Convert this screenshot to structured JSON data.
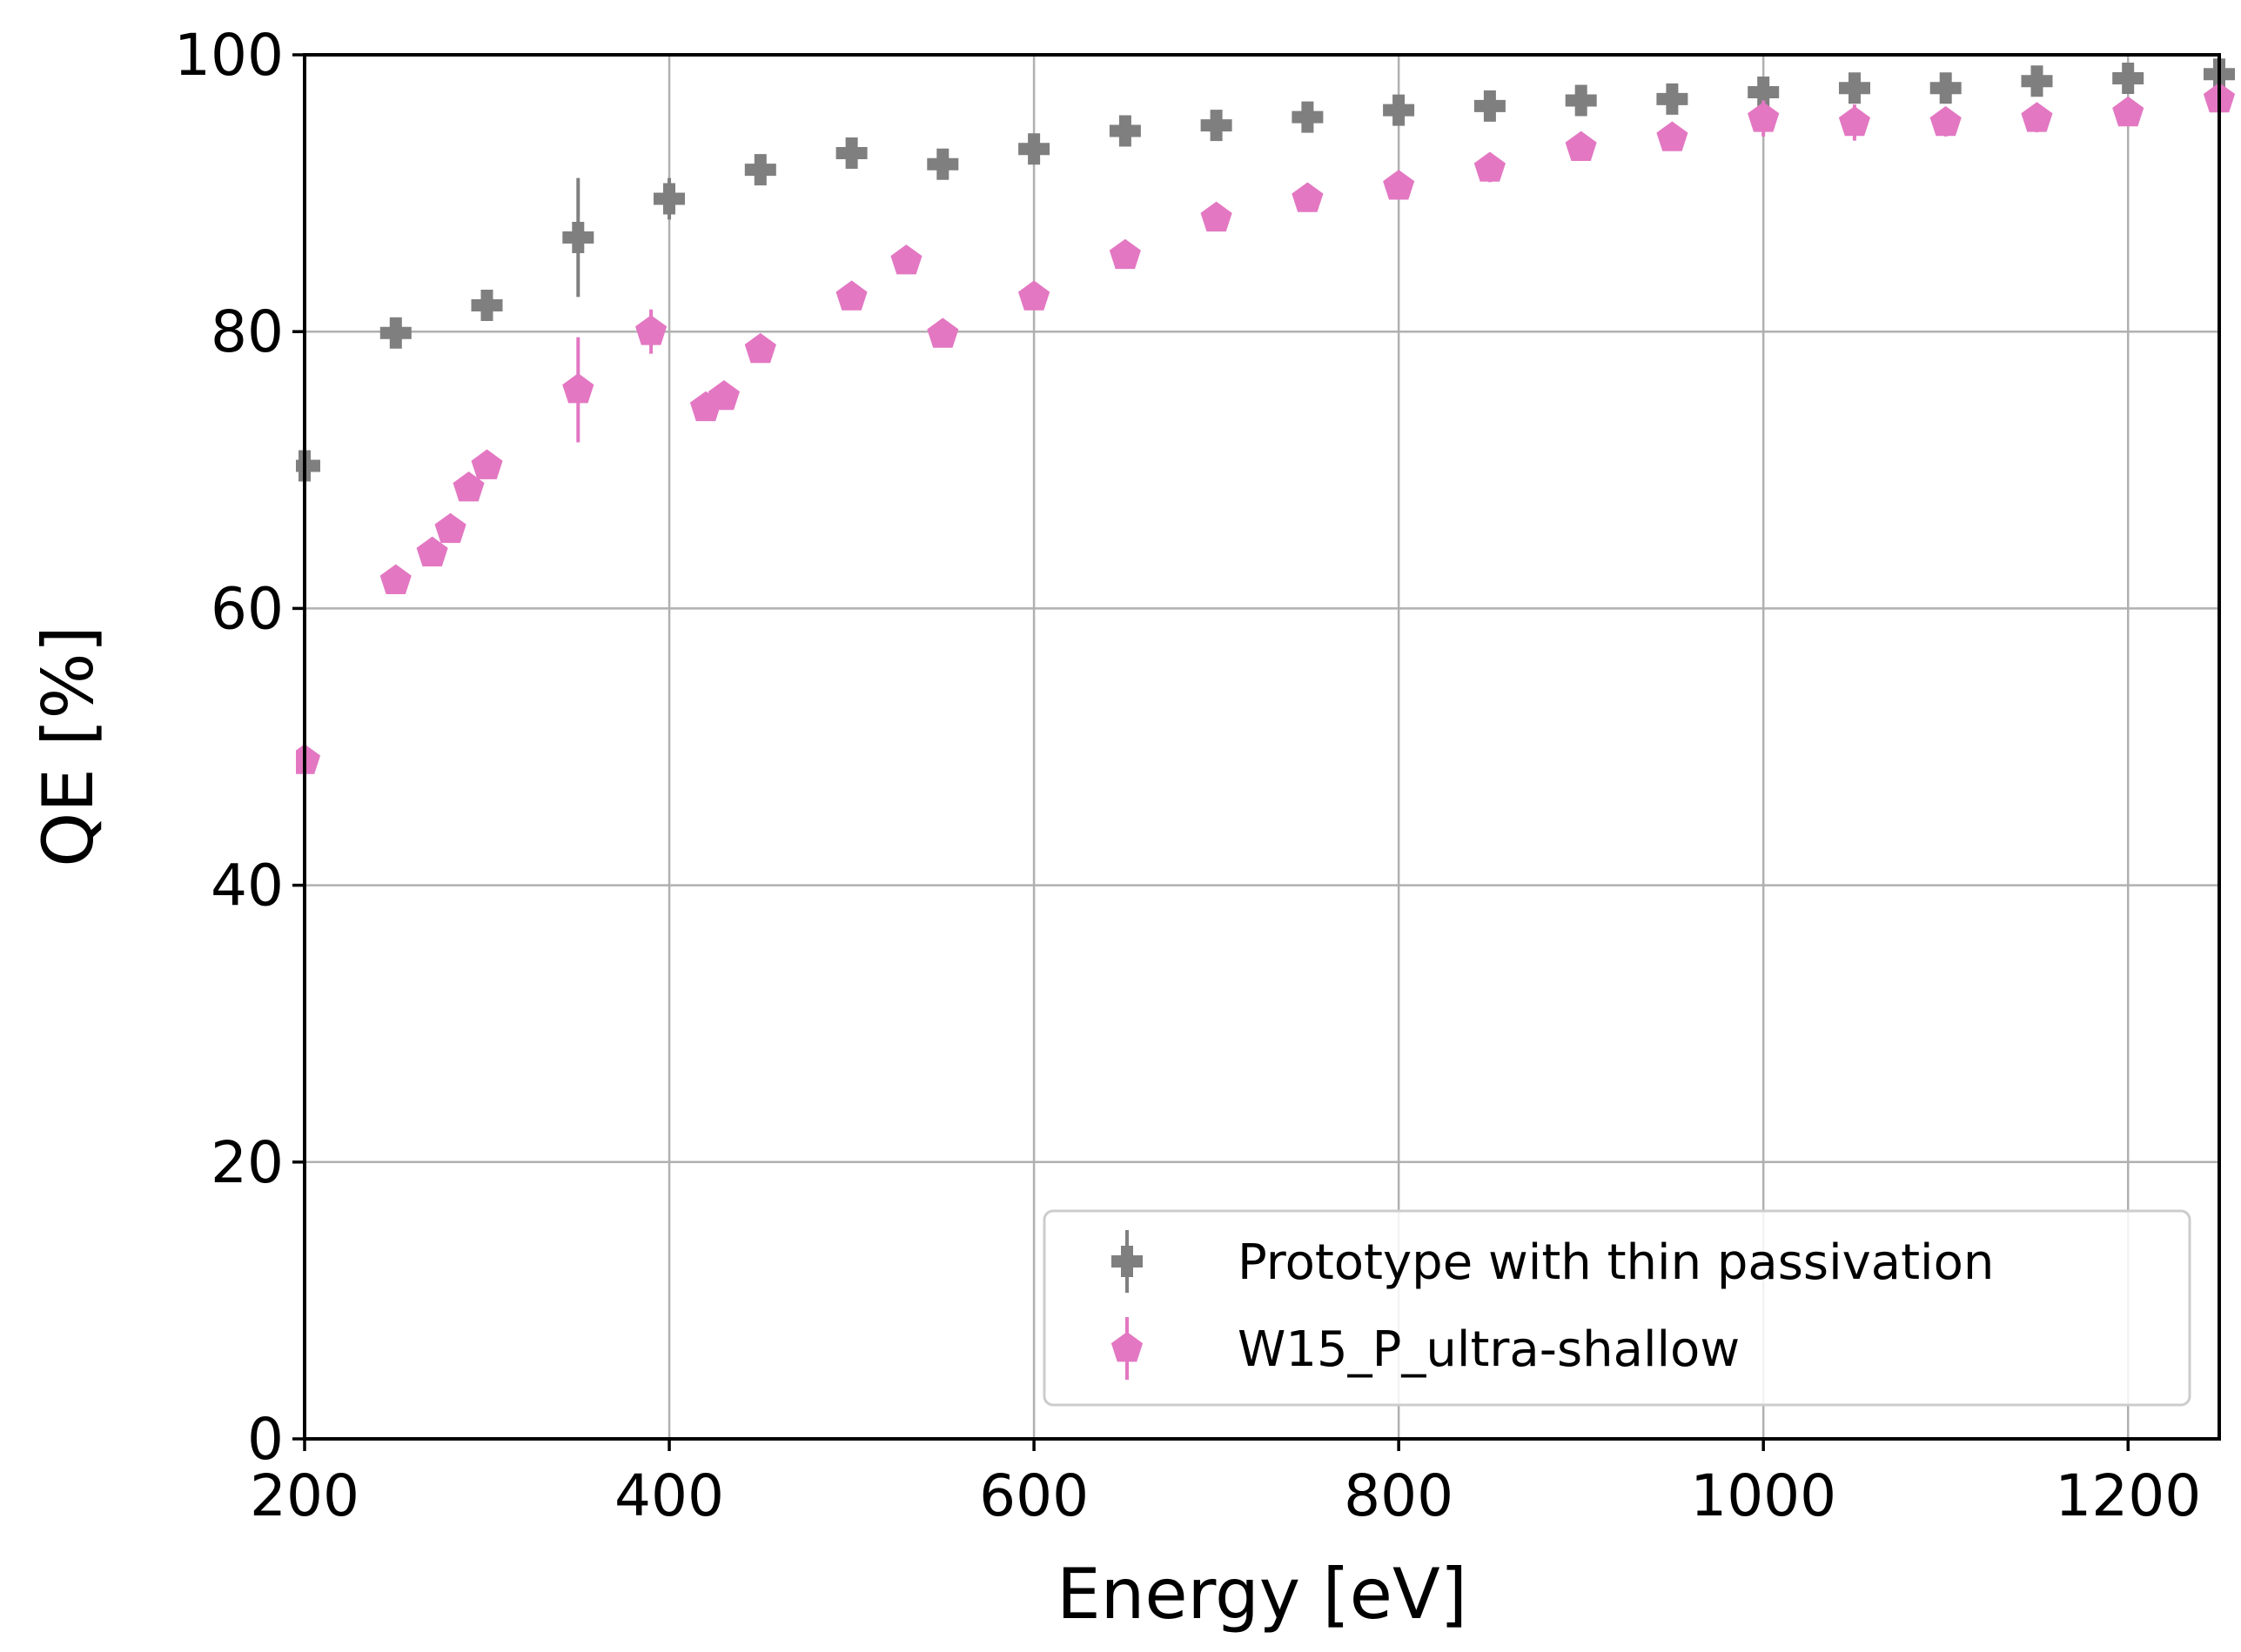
{
  "chart_data": {
    "type": "scatter",
    "xlabel": "Energy [eV]",
    "ylabel": "QE [%]",
    "xlim": [
      200,
      1250
    ],
    "ylim": [
      0,
      100
    ],
    "xticks": [
      200,
      400,
      600,
      800,
      1000,
      1200
    ],
    "yticks": [
      0,
      20,
      40,
      60,
      80,
      100
    ],
    "grid": true,
    "legend_position": "lower-right",
    "series": [
      {
        "name": "Prototype with thin passivation",
        "color": "#7f7f7f",
        "marker": "plus",
        "points": [
          {
            "x": 200,
            "y": 70.3,
            "err": 0.8
          },
          {
            "x": 250,
            "y": 79.9,
            "err": 0.8
          },
          {
            "x": 300,
            "y": 81.9,
            "err": 0.8
          },
          {
            "x": 350,
            "y": 86.8,
            "err": 4.3
          },
          {
            "x": 400,
            "y": 89.6,
            "err": 1.5
          },
          {
            "x": 450,
            "y": 91.7,
            "err": 0.8
          },
          {
            "x": 500,
            "y": 92.9,
            "err": 0.8
          },
          {
            "x": 550,
            "y": 92.1,
            "err": 0.8
          },
          {
            "x": 600,
            "y": 93.2,
            "err": 0.8
          },
          {
            "x": 650,
            "y": 94.5,
            "err": 0.8
          },
          {
            "x": 700,
            "y": 94.9,
            "err": 0.8
          },
          {
            "x": 750,
            "y": 95.5,
            "err": 0.8
          },
          {
            "x": 800,
            "y": 96.0,
            "err": 0.8
          },
          {
            "x": 850,
            "y": 96.3,
            "err": 0.8
          },
          {
            "x": 900,
            "y": 96.7,
            "err": 0.8
          },
          {
            "x": 950,
            "y": 96.8,
            "err": 0.8
          },
          {
            "x": 1000,
            "y": 97.3,
            "err": 0.8
          },
          {
            "x": 1050,
            "y": 97.6,
            "err": 0.8
          },
          {
            "x": 1100,
            "y": 97.6,
            "err": 0.8
          },
          {
            "x": 1150,
            "y": 98.1,
            "err": 0.8
          },
          {
            "x": 1200,
            "y": 98.3,
            "err": 0.8
          },
          {
            "x": 1250,
            "y": 98.6,
            "err": 0.8
          }
        ]
      },
      {
        "name": "W15_P_ultra-shallow",
        "color": "#e377c2",
        "marker": "pentagon",
        "points": [
          {
            "x": 200,
            "y": 49.0,
            "err": 0.8
          },
          {
            "x": 250,
            "y": 62.0,
            "err": 0.8
          },
          {
            "x": 270,
            "y": 64.0,
            "err": 0.8
          },
          {
            "x": 280,
            "y": 65.7,
            "err": 0.8
          },
          {
            "x": 290,
            "y": 68.7,
            "err": 0.8
          },
          {
            "x": 300,
            "y": 70.3,
            "err": 0.8
          },
          {
            "x": 350,
            "y": 75.8,
            "err": 3.8
          },
          {
            "x": 390,
            "y": 80.0,
            "err": 1.6
          },
          {
            "x": 420,
            "y": 74.5,
            "err": 0.8
          },
          {
            "x": 430,
            "y": 75.3,
            "err": 0.8
          },
          {
            "x": 450,
            "y": 78.7,
            "err": 0.8
          },
          {
            "x": 500,
            "y": 82.5,
            "err": 0.8
          },
          {
            "x": 530,
            "y": 85.1,
            "err": 0.8
          },
          {
            "x": 550,
            "y": 79.8,
            "err": 0.8
          },
          {
            "x": 600,
            "y": 82.5,
            "err": 0.8
          },
          {
            "x": 650,
            "y": 85.5,
            "err": 0.8
          },
          {
            "x": 700,
            "y": 88.2,
            "err": 0.8
          },
          {
            "x": 750,
            "y": 89.6,
            "err": 0.8
          },
          {
            "x": 800,
            "y": 90.5,
            "err": 0.8
          },
          {
            "x": 850,
            "y": 91.8,
            "err": 1.0
          },
          {
            "x": 900,
            "y": 93.3,
            "err": 0.8
          },
          {
            "x": 950,
            "y": 94.0,
            "err": 0.8
          },
          {
            "x": 1000,
            "y": 95.4,
            "err": 1.3
          },
          {
            "x": 1050,
            "y": 95.1,
            "err": 1.3
          },
          {
            "x": 1100,
            "y": 95.1,
            "err": 1.0
          },
          {
            "x": 1150,
            "y": 95.4,
            "err": 1.0
          },
          {
            "x": 1200,
            "y": 95.8,
            "err": 0.8
          },
          {
            "x": 1250,
            "y": 96.8,
            "err": 0.8
          }
        ]
      }
    ]
  }
}
